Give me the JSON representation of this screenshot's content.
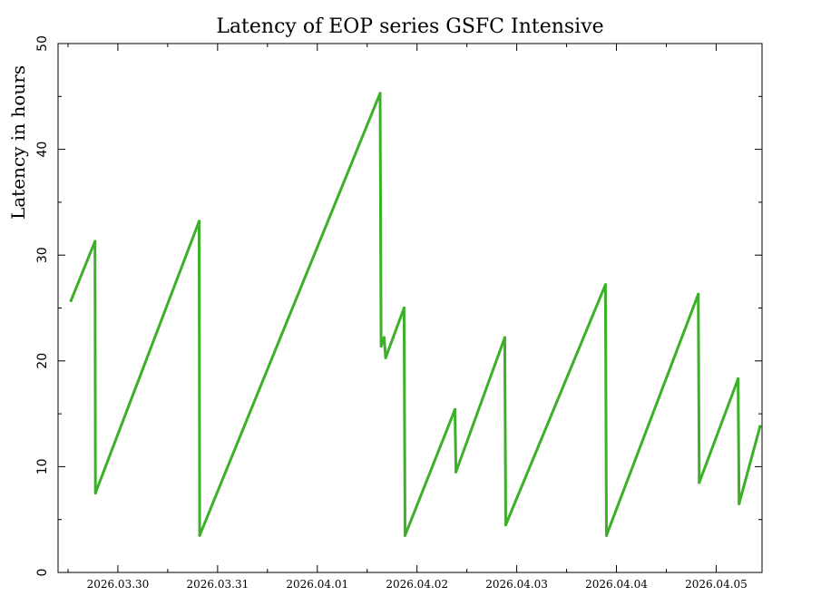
{
  "chart_data": {
    "type": "line",
    "title": "Latency of EOP  series GSFC Intensive",
    "xlabel": "",
    "ylabel": "Latency in hours",
    "ylim": [
      0,
      50
    ],
    "yticks": [
      0,
      10,
      20,
      30,
      40,
      50
    ],
    "xlim": [
      29.4,
      36.46
    ],
    "x_tick_values": [
      30,
      31,
      32,
      33,
      34,
      35,
      36
    ],
    "x_tick_labels": [
      "2026.03.30",
      "2026.03.31",
      "2026.04.01",
      "2026.04.02",
      "2026.04.03",
      "2026.04.04",
      "2026.04.05"
    ],
    "x_unit": "day of March 2026 (30 = 2026.03.30, 32 = 2026.04.01)",
    "grid": false,
    "legend": "none",
    "color": "#3cb028",
    "series": [
      {
        "values": [
          [
            29.53,
            25.7
          ],
          [
            29.77,
            31.3
          ],
          [
            29.775,
            7.5
          ],
          [
            30.815,
            33.2
          ],
          [
            30.82,
            3.5
          ],
          [
            32.63,
            45.3
          ],
          [
            32.64,
            21.4
          ],
          [
            32.67,
            22.2
          ],
          [
            32.685,
            20.3
          ],
          [
            32.87,
            25.0
          ],
          [
            32.88,
            3.5
          ],
          [
            33.38,
            15.4
          ],
          [
            33.39,
            9.5
          ],
          [
            33.88,
            22.2
          ],
          [
            33.89,
            4.5
          ],
          [
            34.89,
            27.2
          ],
          [
            34.9,
            3.5
          ],
          [
            35.82,
            26.3
          ],
          [
            35.83,
            8.5
          ],
          [
            36.22,
            18.3
          ],
          [
            36.23,
            6.5
          ],
          [
            36.44,
            13.8
          ]
        ]
      }
    ]
  }
}
